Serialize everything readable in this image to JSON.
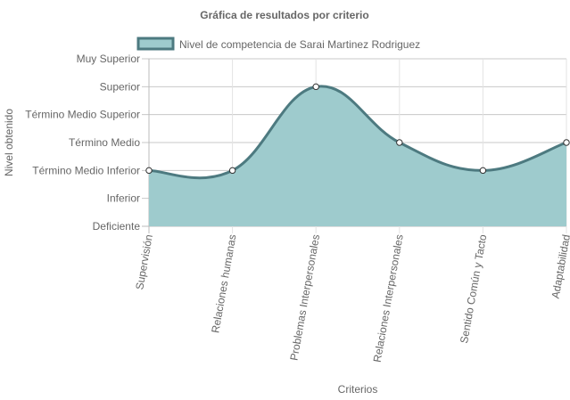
{
  "chart_data": {
    "type": "area",
    "title": "Gráfica de resultados por criterio",
    "xlabel": "Criterios",
    "ylabel": "Nivel obtenido",
    "categories": [
      "Supervisión",
      "Relaciones humanas",
      "Problemas Interpersonales",
      "Relaciones Interpersonales",
      "Sentido Común y Tacto",
      "Adaptabilidad"
    ],
    "y_levels": [
      "Deficiente",
      "Inferior",
      "Término Medio Inferior",
      "Término Medio",
      "Término Medio Superior",
      "Superior",
      "Muy Superior"
    ],
    "ylim": [
      0,
      6
    ],
    "series": [
      {
        "name": "Nivel de competencia de Sarai Martinez Rodriguez",
        "values": [
          2,
          2,
          5,
          3,
          2,
          3
        ],
        "fill_color": "#9ecbcd",
        "line_color": "#4d7a80"
      }
    ],
    "legend_position": "top",
    "grid": true
  }
}
